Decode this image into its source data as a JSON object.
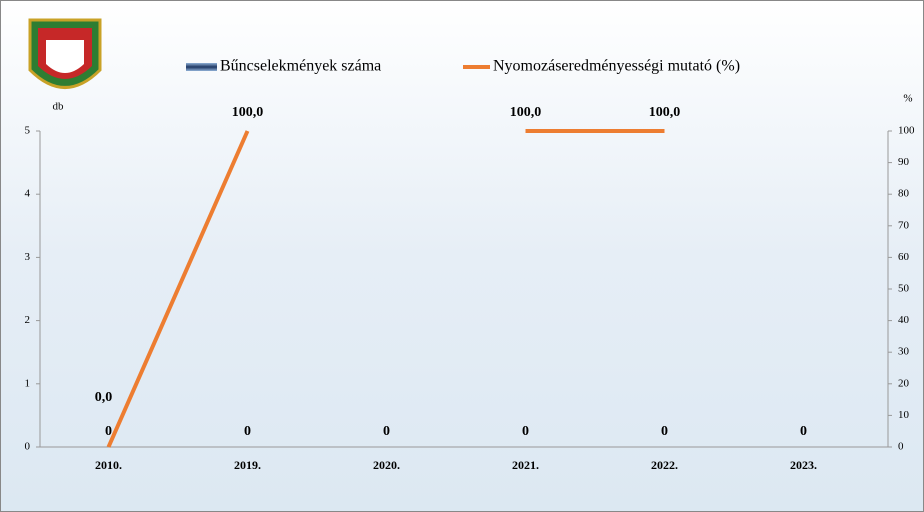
{
  "chart_data": {
    "type": "bar-line",
    "categories": [
      "2010.",
      "2019.",
      "2020.",
      "2021.",
      "2022.",
      "2023."
    ],
    "series": [
      {
        "name": "Bűncselekmények száma",
        "color": "#1f3864",
        "type": "bar",
        "values": [
          0,
          0,
          0,
          0,
          0,
          0
        ]
      },
      {
        "name": "Nyomozáseredményességi mutató (%)",
        "color": "#ed7d31",
        "type": "line",
        "axis": "y2",
        "values": [
          0,
          100,
          null,
          100,
          100,
          null
        ],
        "value_labels": [
          "0,0",
          "100,0",
          null,
          "100,0",
          "100,0",
          null
        ]
      }
    ],
    "y_label": "db",
    "y2_label": "%",
    "ylim": [
      0,
      5
    ],
    "yticks": [
      0,
      1,
      2,
      3,
      4,
      5
    ],
    "y2lim": [
      0,
      100
    ],
    "y2ticks": [
      0,
      10,
      20,
      30,
      40,
      50,
      60,
      70,
      80,
      90,
      100
    ]
  }
}
